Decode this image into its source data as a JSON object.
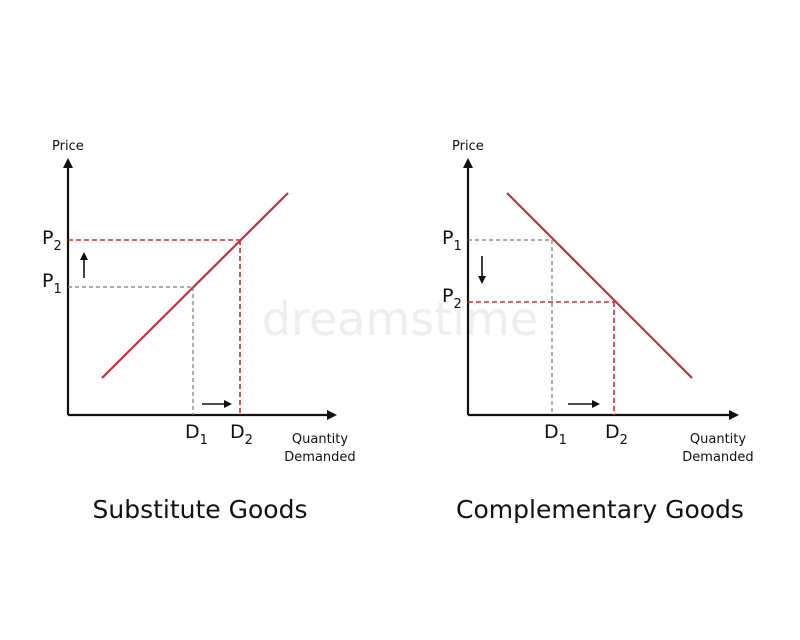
{
  "watermark": "dreamstime",
  "panels": [
    {
      "title": "Substitute Goods",
      "y_axis_label": "Price",
      "x_axis_label": [
        "Quantity",
        "Demanded"
      ],
      "price_labels": [
        {
          "main": "P",
          "sub": "2"
        },
        {
          "main": "P",
          "sub": "1"
        }
      ],
      "demand_labels": [
        {
          "main": "D",
          "sub": "1"
        },
        {
          "main": "D",
          "sub": "2"
        }
      ]
    },
    {
      "title": "Complementary Goods",
      "y_axis_label": "Price",
      "x_axis_label": [
        "Quantity",
        "Demanded"
      ],
      "price_labels": [
        {
          "main": "P",
          "sub": "1"
        },
        {
          "main": "P",
          "sub": "2"
        }
      ],
      "demand_labels": [
        {
          "main": "D",
          "sub": "1"
        },
        {
          "main": "D",
          "sub": "2"
        }
      ]
    }
  ]
}
